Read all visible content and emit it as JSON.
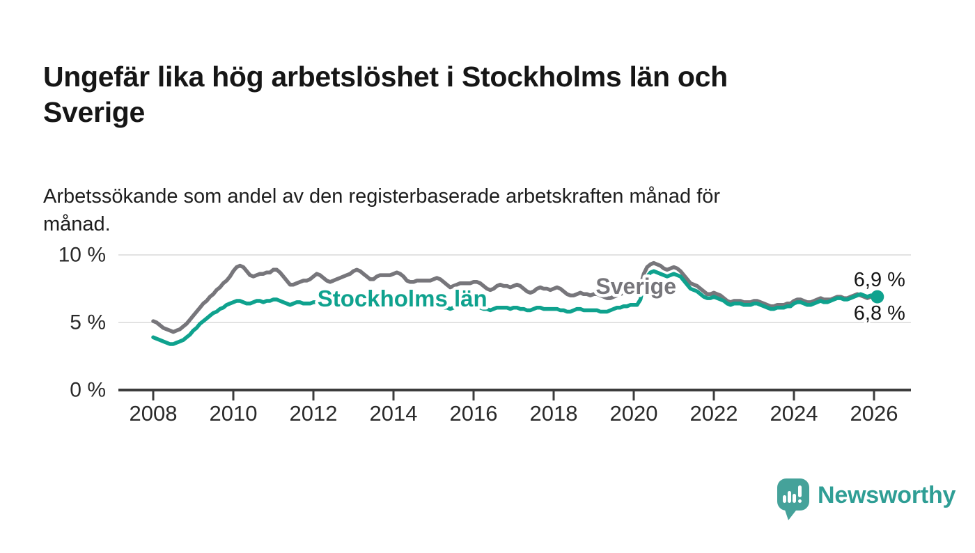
{
  "page": {
    "title_lines": [
      "Ungefär lika hög arbetslöshet i Stockholms län och",
      "Sverige"
    ],
    "subtitle_lines": [
      "Arbetssökande som andel av den registerbaserade arbetskraften månad för",
      "månad."
    ]
  },
  "chart_data": {
    "type": "line",
    "title": "Ungefär lika hög arbetslöshet i Stockholms län och Sverige",
    "subtitle": "Arbetssökande som andel av den registerbaserade arbetskraften månad för månad.",
    "x_unit": "month",
    "x_start": "2008-01",
    "x_end": "2026-02",
    "x_tick_labels": [
      "2008",
      "2010",
      "2012",
      "2014",
      "2016",
      "2018",
      "2020",
      "2022",
      "2024",
      "2026"
    ],
    "y_ticks": [
      {
        "value": 0,
        "label": "0 %"
      },
      {
        "value": 5,
        "label": "5 %"
      },
      {
        "value": 10,
        "label": "10 %"
      }
    ],
    "ylim": [
      0,
      10
    ],
    "grid": "horizontal",
    "legend_position": "inline-labels",
    "series": [
      {
        "name": "Sverige",
        "color": "#77767B",
        "end_label": "6,8 %",
        "values": [
          5.1,
          5.0,
          4.8,
          4.6,
          4.5,
          4.4,
          4.3,
          4.4,
          4.5,
          4.7,
          4.9,
          5.2,
          5.5,
          5.8,
          6.1,
          6.4,
          6.6,
          6.9,
          7.1,
          7.4,
          7.6,
          7.9,
          8.1,
          8.4,
          8.8,
          9.1,
          9.2,
          9.1,
          8.8,
          8.5,
          8.4,
          8.5,
          8.6,
          8.6,
          8.7,
          8.7,
          8.9,
          8.9,
          8.7,
          8.4,
          8.1,
          7.8,
          7.8,
          7.9,
          8.0,
          8.1,
          8.1,
          8.2,
          8.4,
          8.6,
          8.5,
          8.3,
          8.1,
          8.0,
          8.1,
          8.2,
          8.3,
          8.4,
          8.5,
          8.6,
          8.8,
          8.9,
          8.8,
          8.6,
          8.4,
          8.2,
          8.2,
          8.4,
          8.5,
          8.5,
          8.5,
          8.5,
          8.6,
          8.7,
          8.6,
          8.4,
          8.1,
          8.0,
          8.0,
          8.1,
          8.1,
          8.1,
          8.1,
          8.1,
          8.2,
          8.3,
          8.2,
          8.0,
          7.8,
          7.6,
          7.7,
          7.8,
          7.9,
          7.9,
          7.9,
          7.9,
          8.0,
          8.0,
          7.9,
          7.7,
          7.5,
          7.4,
          7.5,
          7.7,
          7.8,
          7.7,
          7.7,
          7.6,
          7.7,
          7.8,
          7.7,
          7.5,
          7.3,
          7.2,
          7.3,
          7.5,
          7.6,
          7.5,
          7.5,
          7.4,
          7.5,
          7.6,
          7.5,
          7.3,
          7.1,
          7.0,
          7.0,
          7.1,
          7.2,
          7.1,
          7.1,
          7.0,
          7.1,
          7.1,
          7.0,
          6.9,
          6.8,
          6.8,
          6.9,
          7.0,
          7.1,
          7.2,
          7.3,
          7.4,
          7.5,
          7.4,
          7.7,
          8.6,
          9.1,
          9.3,
          9.4,
          9.3,
          9.2,
          9.0,
          8.9,
          9.0,
          9.1,
          9.0,
          8.8,
          8.5,
          8.2,
          7.9,
          7.8,
          7.7,
          7.5,
          7.3,
          7.1,
          7.1,
          7.2,
          7.1,
          7.0,
          6.8,
          6.6,
          6.5,
          6.6,
          6.6,
          6.6,
          6.5,
          6.5,
          6.5,
          6.6,
          6.6,
          6.5,
          6.4,
          6.3,
          6.2,
          6.2,
          6.3,
          6.3,
          6.3,
          6.4,
          6.4,
          6.6,
          6.7,
          6.7,
          6.6,
          6.5,
          6.5,
          6.6,
          6.7,
          6.8,
          6.7,
          6.7,
          6.7,
          6.8,
          6.9,
          6.9,
          6.8,
          6.8,
          6.9,
          7.0,
          7.1,
          7.0,
          6.9,
          6.8,
          6.9,
          6.9,
          6.8
        ]
      },
      {
        "name": "Stockholms län",
        "color": "#0FA28E",
        "end_label": "6,9 %",
        "values": [
          3.9,
          3.8,
          3.7,
          3.6,
          3.5,
          3.4,
          3.4,
          3.5,
          3.6,
          3.7,
          3.9,
          4.1,
          4.4,
          4.6,
          4.9,
          5.1,
          5.3,
          5.5,
          5.7,
          5.8,
          6.0,
          6.1,
          6.3,
          6.4,
          6.5,
          6.6,
          6.6,
          6.5,
          6.4,
          6.4,
          6.5,
          6.6,
          6.6,
          6.5,
          6.6,
          6.6,
          6.7,
          6.7,
          6.6,
          6.5,
          6.4,
          6.3,
          6.4,
          6.5,
          6.5,
          6.4,
          6.4,
          6.4,
          6.5,
          6.5,
          6.4,
          6.3,
          6.3,
          6.2,
          6.3,
          6.4,
          6.4,
          6.4,
          6.4,
          6.4,
          6.5,
          6.5,
          6.4,
          6.4,
          6.3,
          6.3,
          6.3,
          6.4,
          6.4,
          6.4,
          6.4,
          6.3,
          6.4,
          6.4,
          6.3,
          6.2,
          6.2,
          6.1,
          6.2,
          6.3,
          6.3,
          6.3,
          6.3,
          6.2,
          6.3,
          6.3,
          6.2,
          6.1,
          6.1,
          6.0,
          6.1,
          6.2,
          6.2,
          6.2,
          6.2,
          6.2,
          6.2,
          6.2,
          6.1,
          6.0,
          6.0,
          5.9,
          6.0,
          6.1,
          6.1,
          6.1,
          6.1,
          6.0,
          6.1,
          6.1,
          6.0,
          6.0,
          5.9,
          5.9,
          6.0,
          6.1,
          6.1,
          6.0,
          6.0,
          6.0,
          6.0,
          6.0,
          5.9,
          5.9,
          5.8,
          5.8,
          5.9,
          6.0,
          6.0,
          5.9,
          5.9,
          5.9,
          5.9,
          5.9,
          5.8,
          5.8,
          5.8,
          5.9,
          6.0,
          6.1,
          6.1,
          6.2,
          6.2,
          6.3,
          6.3,
          6.3,
          6.7,
          7.8,
          8.4,
          8.7,
          8.8,
          8.7,
          8.6,
          8.5,
          8.4,
          8.5,
          8.6,
          8.5,
          8.4,
          8.1,
          7.8,
          7.5,
          7.4,
          7.3,
          7.1,
          6.9,
          6.8,
          6.8,
          6.9,
          6.8,
          6.7,
          6.6,
          6.4,
          6.3,
          6.4,
          6.4,
          6.4,
          6.3,
          6.3,
          6.3,
          6.4,
          6.4,
          6.3,
          6.2,
          6.1,
          6.0,
          6.0,
          6.1,
          6.1,
          6.1,
          6.2,
          6.2,
          6.4,
          6.5,
          6.5,
          6.4,
          6.3,
          6.3,
          6.4,
          6.5,
          6.6,
          6.5,
          6.5,
          6.6,
          6.7,
          6.8,
          6.8,
          6.7,
          6.7,
          6.8,
          6.9,
          7.0,
          7.1,
          7.0,
          6.9,
          7.0,
          7.0,
          6.9
        ]
      }
    ],
    "annotations": [
      {
        "text": "Stockholms län",
        "color": "#0FA28E",
        "x_year": 2012.1,
        "y_value": 6.19,
        "font_weight": 700,
        "font_size": 33
      },
      {
        "text": "Sverige",
        "color": "#77767B",
        "x_year": 2019.05,
        "y_value": 7.11,
        "font_weight": 600,
        "font_size": 32
      }
    ]
  },
  "footer": {
    "brand": "Newsworthy"
  }
}
